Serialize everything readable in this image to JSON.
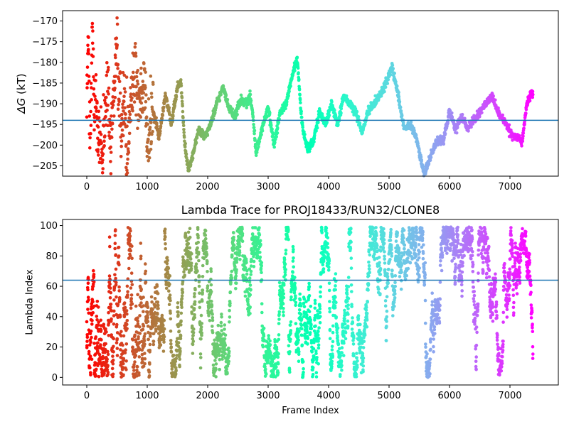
{
  "chart_data": [
    {
      "type": "scatter",
      "title": "",
      "xlabel": "",
      "ylabel": "ΔG (kT)",
      "xlim": [
        -400,
        7800
      ],
      "ylim": [
        -207.5,
        -167.5
      ],
      "x_ticks": [
        0,
        1000,
        2000,
        3000,
        4000,
        5000,
        6000,
        7000
      ],
      "x_tick_labels": [
        "0",
        "1000",
        "2000",
        "3000",
        "4000",
        "5000",
        "6000",
        "7000"
      ],
      "y_ticks": [
        -170,
        -175,
        -180,
        -185,
        -190,
        -195,
        -200,
        -205
      ],
      "y_tick_labels": [
        "−170",
        "−175",
        "−180",
        "−185",
        "−190",
        "−195",
        "−200",
        "−205"
      ],
      "hline": -194,
      "grid": false,
      "colormap": "rainbow (color by frame, late = purple, early = red)",
      "trace_knots": [
        [
          0,
          -190
        ],
        [
          20,
          -170
        ],
        [
          40,
          -188
        ],
        [
          60,
          -204
        ],
        [
          80,
          -180
        ],
        [
          100,
          -170
        ],
        [
          120,
          -195
        ],
        [
          150,
          -185
        ],
        [
          180,
          -200
        ],
        [
          220,
          -196
        ],
        [
          260,
          -205
        ],
        [
          300,
          -192
        ],
        [
          350,
          -188
        ],
        [
          400,
          -200
        ],
        [
          450,
          -186
        ],
        [
          500,
          -175
        ],
        [
          540,
          -190
        ],
        [
          580,
          -198
        ],
        [
          620,
          -186
        ],
        [
          660,
          -202
        ],
        [
          700,
          -195
        ],
        [
          750,
          -186
        ],
        [
          800,
          -180
        ],
        [
          850,
          -190
        ],
        [
          900,
          -187
        ],
        [
          950,
          -186
        ],
        [
          1000,
          -200
        ],
        [
          1100,
          -192
        ],
        [
          1200,
          -198
        ],
        [
          1300,
          -188
        ],
        [
          1400,
          -195
        ],
        [
          1500,
          -186
        ],
        [
          1560,
          -185
        ],
        [
          1620,
          -200
        ],
        [
          1680,
          -206
        ],
        [
          1760,
          -202
        ],
        [
          1850,
          -196
        ],
        [
          1950,
          -198
        ],
        [
          2050,
          -195
        ],
        [
          2150,
          -190
        ],
        [
          2250,
          -186
        ],
        [
          2350,
          -191
        ],
        [
          2450,
          -193
        ],
        [
          2550,
          -189
        ],
        [
          2650,
          -190
        ],
        [
          2700,
          -188
        ],
        [
          2750,
          -193
        ],
        [
          2800,
          -202
        ],
        [
          2900,
          -196
        ],
        [
          3000,
          -191
        ],
        [
          3100,
          -200
        ],
        [
          3200,
          -192
        ],
        [
          3300,
          -190
        ],
        [
          3400,
          -183
        ],
        [
          3480,
          -179
        ],
        [
          3560,
          -195
        ],
        [
          3650,
          -201
        ],
        [
          3750,
          -199
        ],
        [
          3850,
          -192
        ],
        [
          3950,
          -195
        ],
        [
          4050,
          -190
        ],
        [
          4150,
          -195
        ],
        [
          4250,
          -188
        ],
        [
          4350,
          -190
        ],
        [
          4450,
          -192
        ],
        [
          4550,
          -197
        ],
        [
          4650,
          -192
        ],
        [
          4750,
          -190
        ],
        [
          4850,
          -188
        ],
        [
          4950,
          -185
        ],
        [
          5050,
          -181
        ],
        [
          5150,
          -188
        ],
        [
          5250,
          -196
        ],
        [
          5350,
          -195
        ],
        [
          5450,
          -198
        ],
        [
          5520,
          -203
        ],
        [
          5580,
          -207
        ],
        [
          5700,
          -202
        ],
        [
          5800,
          -199
        ],
        [
          5900,
          -199
        ],
        [
          6000,
          -192
        ],
        [
          6100,
          -196
        ],
        [
          6200,
          -193
        ],
        [
          6300,
          -196
        ],
        [
          6400,
          -194
        ],
        [
          6500,
          -192
        ],
        [
          6600,
          -190
        ],
        [
          6700,
          -188
        ],
        [
          6800,
          -192
        ],
        [
          6900,
          -194
        ],
        [
          7000,
          -197
        ],
        [
          7100,
          -198
        ],
        [
          7200,
          -199
        ],
        [
          7280,
          -190
        ],
        [
          7340,
          -188
        ],
        [
          7380,
          -187
        ]
      ]
    },
    {
      "type": "scatter",
      "title": "Lambda Trace for PROJ18433/RUN32/CLONE8",
      "xlabel": "Frame Index",
      "ylabel": "Lambda Index",
      "xlim": [
        -400,
        7800
      ],
      "ylim": [
        -5,
        104
      ],
      "x_ticks": [
        0,
        1000,
        2000,
        3000,
        4000,
        5000,
        6000,
        7000
      ],
      "x_tick_labels": [
        "0",
        "1000",
        "2000",
        "3000",
        "4000",
        "5000",
        "6000",
        "7000"
      ],
      "y_ticks": [
        0,
        20,
        40,
        60,
        80,
        100
      ],
      "y_tick_labels": [
        "0",
        "20",
        "40",
        "60",
        "80",
        "100"
      ],
      "hline": 64,
      "grid": false,
      "lambda_range": [
        0,
        99
      ],
      "frame_range": [
        0,
        7380
      ],
      "colormap": "rainbow (color by frame, late = purple, early = red)"
    }
  ],
  "colors": {
    "reference_line": "#1f77b4",
    "frame": "#000000",
    "background": "#ffffff"
  }
}
